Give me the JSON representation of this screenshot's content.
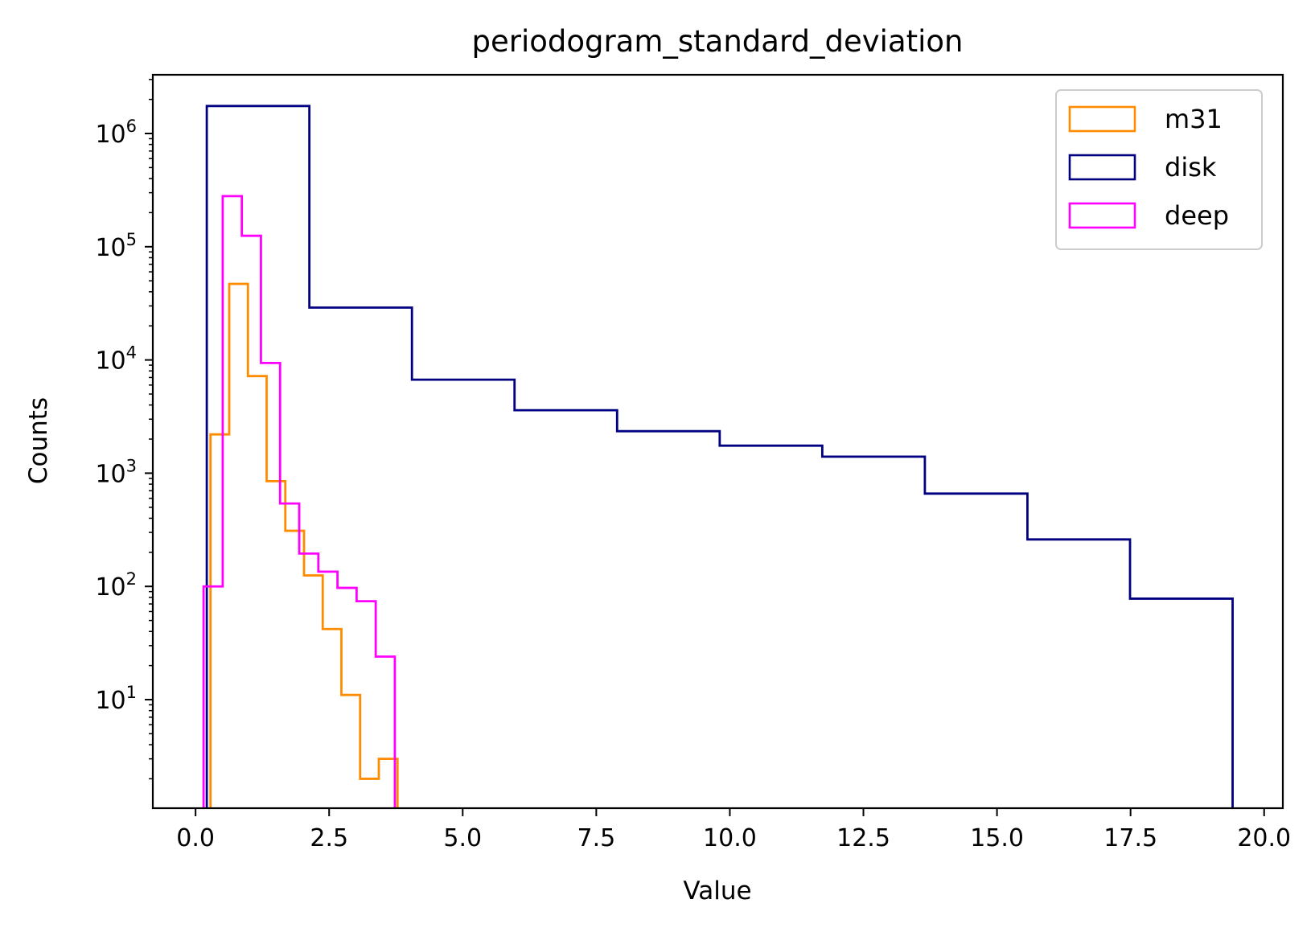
{
  "chart_data": {
    "type": "histogram-step",
    "title": "periodogram_standard_deviation",
    "xlabel": "Value",
    "ylabel": "Counts",
    "xlim": [
      -0.8,
      20.35
    ],
    "ylim": [
      1.1,
      3300000
    ],
    "yscale": "log",
    "grid": false,
    "legend_position": "top-right",
    "x_ticks": [
      {
        "value": 0.0,
        "label": "0.0"
      },
      {
        "value": 2.5,
        "label": "2.5"
      },
      {
        "value": 5.0,
        "label": "5.0"
      },
      {
        "value": 7.5,
        "label": "7.5"
      },
      {
        "value": 10.0,
        "label": "10.0"
      },
      {
        "value": 12.5,
        "label": "12.5"
      },
      {
        "value": 15.0,
        "label": "15.0"
      },
      {
        "value": 17.5,
        "label": "17.5"
      },
      {
        "value": 20.0,
        "label": "20.0"
      }
    ],
    "y_ticks": [
      {
        "value": 10,
        "base": "10",
        "exp": "1"
      },
      {
        "value": 100,
        "base": "10",
        "exp": "2"
      },
      {
        "value": 1000,
        "base": "10",
        "exp": "3"
      },
      {
        "value": 10000,
        "base": "10",
        "exp": "4"
      },
      {
        "value": 100000,
        "base": "10",
        "exp": "5"
      },
      {
        "value": 1000000,
        "base": "10",
        "exp": "6"
      }
    ],
    "series": [
      {
        "name": "m31",
        "color": "#ff8c00",
        "edges": [
          0.28,
          0.63,
          0.98,
          1.33,
          1.68,
          2.03,
          2.38,
          2.73,
          3.08,
          3.43,
          3.78
        ],
        "counts": [
          2200,
          47000,
          7200,
          850,
          310,
          125,
          42,
          11,
          2,
          3
        ]
      },
      {
        "name": "disk",
        "color": "#000080",
        "edges": [
          0.21,
          2.13,
          4.05,
          5.97,
          7.89,
          9.81,
          11.73,
          13.65,
          15.57,
          17.49,
          19.41
        ],
        "counts": [
          1750000,
          29000,
          6700,
          3600,
          2350,
          1750,
          1400,
          660,
          260,
          78
        ]
      },
      {
        "name": "deep",
        "color": "#ff00ff",
        "edges": [
          0.15,
          0.508,
          0.866,
          1.224,
          1.582,
          1.94,
          2.298,
          2.656,
          3.014,
          3.372,
          3.73
        ],
        "counts": [
          100,
          280000,
          125000,
          9400,
          540,
          195,
          135,
          97,
          74,
          24
        ]
      }
    ]
  }
}
